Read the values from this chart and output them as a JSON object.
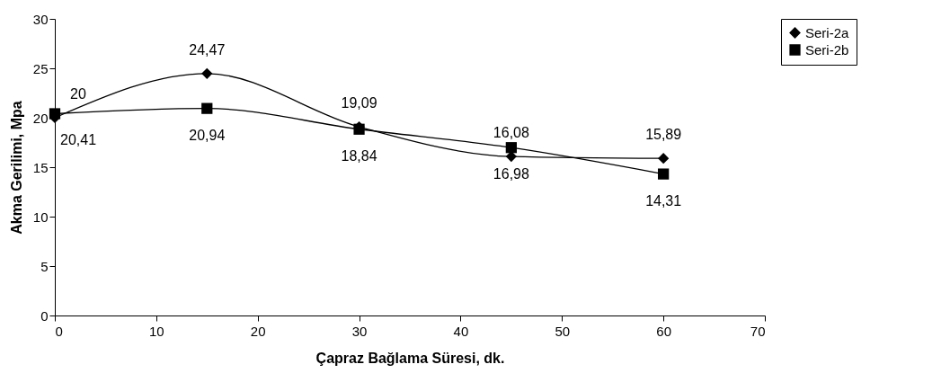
{
  "chart_data": {
    "type": "line",
    "xlabel": "Çapraz Bağlama Süresi, dk.",
    "ylabel": "Akma Gerilimi, Mpa",
    "x": [
      0,
      15,
      30,
      45,
      60
    ],
    "series": [
      {
        "name": "Seri-2a",
        "color": "#000000",
        "marker": "diamond",
        "values": [
          20,
          24.47,
          19.09,
          16.08,
          15.89
        ],
        "value_labels": [
          "20",
          "24,47",
          "19,09",
          "16,08",
          "15,89"
        ]
      },
      {
        "name": "Seri-2b",
        "color": "#000000",
        "marker": "square",
        "values": [
          20.41,
          20.94,
          18.84,
          16.98,
          14.31
        ],
        "value_labels": [
          "20,41",
          "20,94",
          "18,84",
          "16,98",
          "14,31"
        ]
      }
    ],
    "xlim": [
      0,
      70
    ],
    "xticks": [
      0,
      10,
      20,
      30,
      40,
      50,
      60,
      70
    ],
    "ylim": [
      0,
      30
    ],
    "yticks": [
      0,
      5,
      10,
      15,
      20,
      25,
      30
    ],
    "legend": "right",
    "grid": false
  }
}
